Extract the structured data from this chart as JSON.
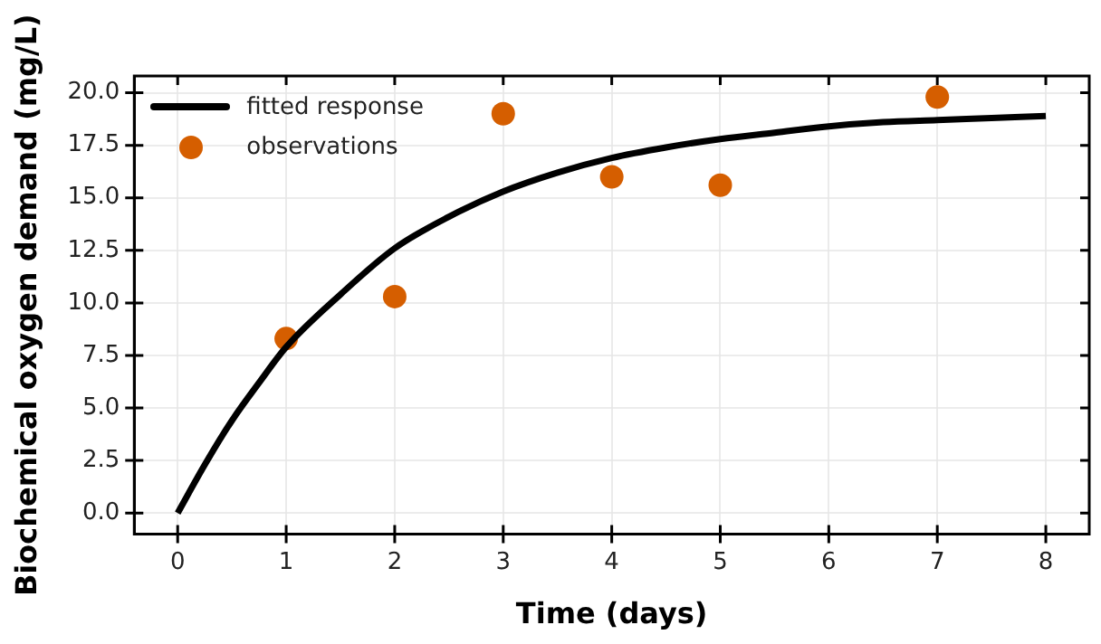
{
  "chart_data": {
    "type": "line",
    "xlabel": "Time (days)",
    "ylabel": "Biochemical oxygen demand (mg/L)",
    "xlim": [
      -0.4,
      8.4
    ],
    "xticks": [
      0,
      1,
      2,
      3,
      4,
      5,
      6,
      7,
      8
    ],
    "ylim": [
      -1,
      20.8
    ],
    "yticks": [
      {
        "value": 0,
        "label": "0.0"
      },
      {
        "value": 2.5,
        "label": "2.5"
      },
      {
        "value": 5,
        "label": "5.0"
      },
      {
        "value": 7.5,
        "label": "7.5"
      },
      {
        "value": 10,
        "label": "10.0"
      },
      {
        "value": 12.5,
        "label": "12.5"
      },
      {
        "value": 15,
        "label": "15.0"
      },
      {
        "value": 17.5,
        "label": "17.5"
      },
      {
        "value": 20,
        "label": "20.0"
      }
    ],
    "grid": true,
    "legend": "top left",
    "series": [
      {
        "name": "fitted response",
        "color": "#000000",
        "marker": "none",
        "line_style": "solid",
        "x": [
          0,
          0.25,
          0.5,
          0.75,
          1,
          1.5,
          2,
          2.5,
          3,
          3.5,
          4,
          4.5,
          5,
          5.5,
          6,
          6.5,
          7,
          7.5,
          8
        ],
        "values": [
          0,
          2.3,
          4.4,
          6.2,
          7.9,
          10.4,
          12.6,
          14.1,
          15.3,
          16.2,
          16.9,
          17.4,
          17.8,
          18.1,
          18.4,
          18.6,
          18.7,
          18.8,
          18.9
        ]
      },
      {
        "name": "observations",
        "type": "scatter",
        "color": "#d55e00",
        "marker": "circle",
        "x": [
          1,
          2,
          3,
          4,
          5,
          7
        ],
        "values": [
          8.3,
          10.3,
          19.0,
          16.0,
          15.6,
          19.8
        ]
      }
    ]
  }
}
